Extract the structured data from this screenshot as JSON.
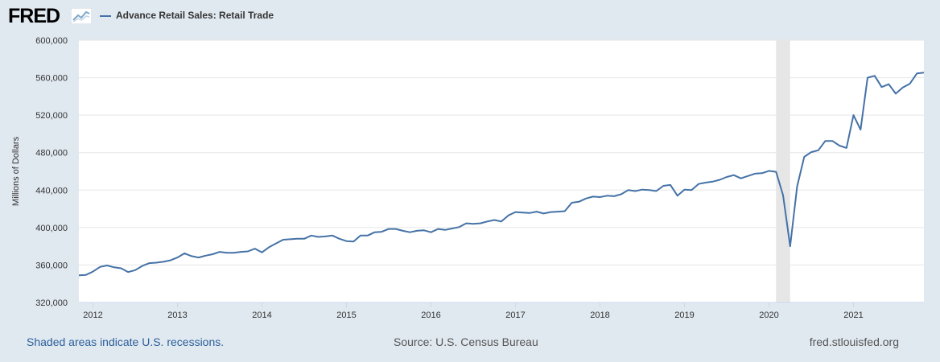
{
  "brand": {
    "name": "FRED",
    "icon": "line-chart-icon"
  },
  "legend": {
    "series_name": "Advance Retail Sales: Retail Trade",
    "color": "#4572a7"
  },
  "footer": {
    "note": "Shaded areas indicate U.S. recessions.",
    "source": "Source: U.S. Census Bureau",
    "site": "fred.stlouisfed.org"
  },
  "colors": {
    "background": "#e1e9f0",
    "plot": "#ffffff",
    "line": "#4572a7",
    "recession": "#e6e6e6",
    "grid": "#e6e6e6"
  },
  "chart_data": {
    "type": "line",
    "title": "",
    "xlabel": "",
    "ylabel": "Millions of Dollars",
    "ylim": [
      320000,
      600000
    ],
    "yticks": [
      320000,
      360000,
      400000,
      440000,
      480000,
      520000,
      560000,
      600000
    ],
    "ytick_labels": [
      "320,000",
      "360,000",
      "400,000",
      "440,000",
      "480,000",
      "520,000",
      "560,000",
      "600,000"
    ],
    "xlim": [
      "2011-11",
      "2021-11"
    ],
    "xticks": [
      "2012",
      "2013",
      "2014",
      "2015",
      "2016",
      "2017",
      "2018",
      "2019",
      "2020",
      "2021"
    ],
    "grid": true,
    "legend_position": "top-left",
    "recessions": [
      {
        "start": "2020-02",
        "end": "2020-04"
      }
    ],
    "series": [
      {
        "name": "Advance Retail Sales: Retail Trade",
        "start": "2011-11",
        "frequency": "monthly",
        "values": [
          349000,
          349500,
          353000,
          358000,
          359500,
          357500,
          356500,
          352500,
          354500,
          359000,
          362000,
          362500,
          363500,
          365000,
          368000,
          372500,
          369500,
          368000,
          370000,
          371500,
          374000,
          373000,
          373000,
          374000,
          374500,
          377500,
          373500,
          379000,
          383000,
          387000,
          387500,
          388000,
          388000,
          391500,
          390000,
          390500,
          391500,
          388000,
          385500,
          385000,
          391500,
          391500,
          395000,
          395500,
          398500,
          398500,
          396500,
          395000,
          396500,
          397000,
          395000,
          398500,
          397500,
          399000,
          400500,
          404500,
          404000,
          404500,
          406500,
          408000,
          406500,
          413000,
          416500,
          416000,
          415500,
          417000,
          415000,
          416500,
          417000,
          417500,
          426500,
          427500,
          431000,
          433000,
          432500,
          434000,
          433500,
          435500,
          440000,
          439000,
          440500,
          440000,
          439000,
          444500,
          445500,
          434000,
          440500,
          440000,
          446500,
          448000,
          449000,
          451000,
          454000,
          456000,
          452500,
          455000,
          457500,
          458000,
          460500,
          459500,
          434500,
          380000,
          444000,
          475500,
          480500,
          482500,
          492500,
          492500,
          487500,
          485000,
          520000,
          504500,
          560000,
          562000,
          550000,
          553000,
          543000,
          549500,
          553500,
          564500,
          565500
        ]
      }
    ]
  }
}
